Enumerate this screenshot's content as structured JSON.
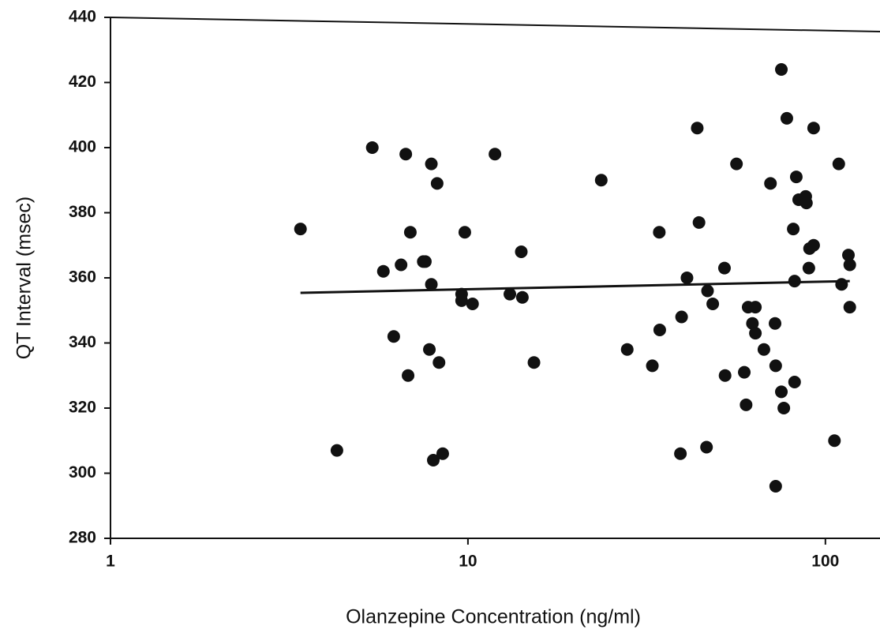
{
  "chart_data": {
    "type": "scatter",
    "x_label": "Olanzepine Concentration (ng/ml)",
    "y_label": "QT Interval (msec)",
    "xscale": "log",
    "xlim": [
      1,
      140
    ],
    "xticks": [
      1,
      10,
      100
    ],
    "ylim": [
      280,
      440
    ],
    "yticks": [
      280,
      300,
      320,
      340,
      360,
      380,
      400,
      420,
      440
    ],
    "color": "#111111",
    "x": [
      3.4,
      4.3,
      5.4,
      5.8,
      6.2,
      6.5,
      6.7,
      6.8,
      6.9,
      7.5,
      7.6,
      7.8,
      7.9,
      7.9,
      8.0,
      8.2,
      8.3,
      8.5,
      9.6,
      9.6,
      9.8,
      10.3,
      11.9,
      13.1,
      14.1,
      14.2,
      15.3,
      23.6,
      27.9,
      32.8,
      34.3,
      34.4,
      39.3,
      39.6,
      41,
      43.8,
      44.3,
      46.5,
      46.8,
      48.4,
      52.2,
      52.4,
      56.4,
      59.3,
      60,
      60.8,
      63.7,
      62.5,
      63.7,
      67.3,
      70.2,
      72.3,
      72.6,
      72.6,
      75.3,
      75.3,
      76.5,
      78,
      81.3,
      82,
      82,
      82.9,
      84.2,
      88.1,
      88.5,
      89.9,
      90.3,
      92.7,
      92.7,
      106,
      109,
      111,
      116,
      117,
      117
    ],
    "y": [
      375,
      307,
      400,
      362,
      342,
      364,
      398,
      330,
      374,
      365,
      365,
      338,
      358,
      395,
      304,
      389,
      334,
      306,
      355,
      353,
      374,
      352,
      398,
      355,
      368,
      354,
      334,
      390,
      338,
      333,
      374,
      344,
      306,
      348,
      360,
      406,
      377,
      308,
      356,
      352,
      363,
      330,
      395,
      331,
      321,
      351,
      351,
      346,
      343,
      338,
      389,
      346,
      296,
      333,
      325,
      424,
      320,
      409,
      375,
      359,
      328,
      391,
      384,
      385,
      383,
      363,
      369,
      370,
      406,
      310,
      395,
      358,
      367,
      364,
      351
    ],
    "trend": {
      "x": [
        3.4,
        117
      ],
      "y": [
        355.4,
        359.0
      ]
    }
  }
}
